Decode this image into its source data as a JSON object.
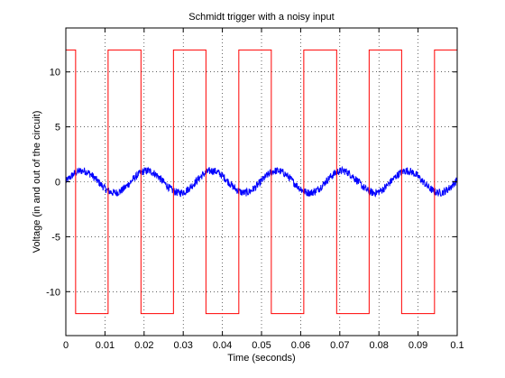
{
  "chart_data": {
    "type": "line",
    "title": "Schmidt trigger with a noisy input",
    "xlabel": "Time (seconds)",
    "ylabel": "Voltage (in and out of the circuit)",
    "xlim": [
      0,
      0.1
    ],
    "ylim": [
      -14,
      14
    ],
    "xticks": [
      0,
      0.01,
      0.02,
      0.03,
      0.04,
      0.05,
      0.06,
      0.07,
      0.08,
      0.09,
      0.1
    ],
    "xtick_labels": [
      "0",
      "0.01",
      "0.02",
      "0.03",
      "0.04",
      "0.05",
      "0.06",
      "0.07",
      "0.08",
      "0.09",
      "0.1"
    ],
    "yticks": [
      -10,
      -5,
      0,
      5,
      10
    ],
    "ytick_labels": [
      "-10",
      "-5",
      "0",
      "5",
      "10"
    ],
    "grid": true,
    "series": [
      {
        "color": "#0000ff",
        "style": "noisy-sine",
        "amplitude": 1.0,
        "period": 0.0166,
        "phase_x": 0.0,
        "noise": 0.35,
        "x_range": [
          0,
          0.1
        ]
      },
      {
        "color": "#ff0000",
        "style": "step",
        "x": [
          0,
          0.0025,
          0.0025,
          0.0108,
          0.0108,
          0.0192,
          0.0192,
          0.0275,
          0.0275,
          0.0358,
          0.0358,
          0.0442,
          0.0442,
          0.0525,
          0.0525,
          0.0608,
          0.0608,
          0.0692,
          0.0692,
          0.0775,
          0.0775,
          0.0858,
          0.0858,
          0.0942,
          0.0942,
          0.1
        ],
        "y": [
          12,
          12,
          -12,
          -12,
          12,
          12,
          -12,
          -12,
          12,
          12,
          -12,
          -12,
          12,
          12,
          -12,
          -12,
          12,
          12,
          -12,
          -12,
          12,
          12,
          -12,
          -12,
          12,
          12
        ]
      }
    ]
  }
}
